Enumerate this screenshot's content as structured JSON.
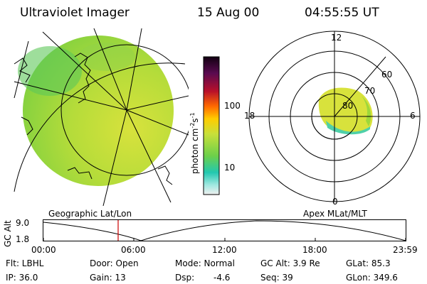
{
  "header": {
    "instrument": "Ultraviolet Imager",
    "date": "15 Aug 00",
    "time": "04:55:55 UT"
  },
  "colorbar": {
    "unit_label": "photon cm",
    "unit_sup1": "-2",
    "unit_s": "s",
    "unit_sup2": "-1",
    "ticks": [
      "100",
      "10"
    ]
  },
  "polar_plot": {
    "mlt_labels": {
      "top": "12",
      "bottom": "0",
      "left": "18",
      "right": "6"
    },
    "lat_labels": [
      "60",
      "70",
      "80"
    ]
  },
  "timeline": {
    "left_title": "Geographic Lat/Lon",
    "right_title": "Apex MLat/MLT",
    "ylabel": "GC Alt",
    "y_ticks": [
      "9.0",
      "1.8"
    ],
    "x_ticks": [
      "00:00",
      "06:00",
      "12:00",
      "18:00",
      "23:59"
    ]
  },
  "info": {
    "flt": "Flt: LBHL",
    "door": "Door: Open",
    "mode": "Mode: Normal",
    "gc_alt": "GC Alt: 3.9 Re",
    "glat": "GLat: 85.3",
    "ip": "IP: 36.0",
    "gain": "Gain: 13",
    "dsp_label": "Dsp:",
    "dsp_value": "-4.6",
    "seq": "Seq: 39",
    "glon": "GLon: 349.6"
  },
  "colors": {
    "image_green": "#9ed83a",
    "image_yellow": "#d4e23a",
    "image_teal": "#4fd0a8",
    "marker_red": "#cc0000"
  }
}
